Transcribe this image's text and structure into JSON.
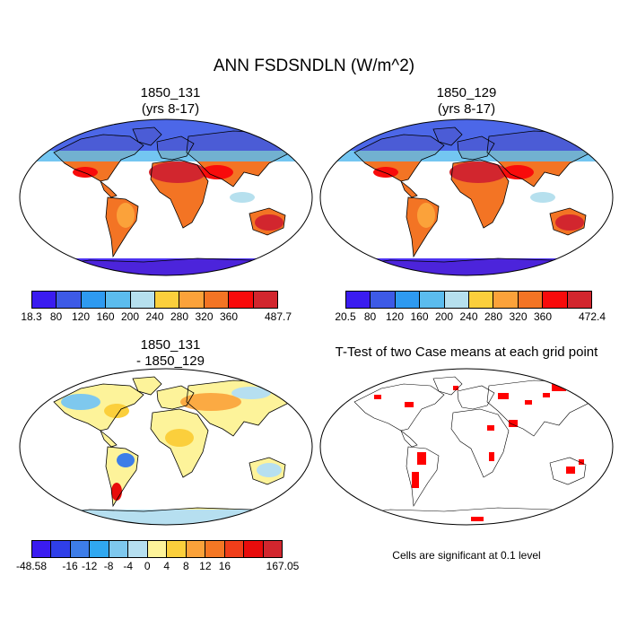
{
  "title": "ANN FSDSNDLN (W/m^2)",
  "panels": [
    {
      "title": [
        "1850_131",
        "(yrs 8-17)"
      ],
      "colorbar": {
        "colors": [
          "#3a1cf0",
          "#3d5ae6",
          "#2e9af0",
          "#5bbcee",
          "#b6e0ee",
          "#fbcf3c",
          "#fba23a",
          "#f37424",
          "#f80b0b",
          "#d2262e"
        ],
        "labels": [
          "18.3",
          "80",
          "120",
          "160",
          "200",
          "240",
          "280",
          "320",
          "360",
          "487.7"
        ]
      }
    },
    {
      "title": [
        "1850_129",
        "(yrs 8-17)"
      ],
      "colorbar": {
        "colors": [
          "#3a1cf0",
          "#3d5ae6",
          "#2e9af0",
          "#5bbcee",
          "#b6e0ee",
          "#fbcf3c",
          "#fba23a",
          "#f37424",
          "#f80b0b",
          "#d2262e"
        ],
        "labels": [
          "20.5",
          "80",
          "120",
          "160",
          "200",
          "240",
          "280",
          "320",
          "360",
          "472.4"
        ]
      }
    },
    {
      "title": [
        "1850_131",
        "- 1850_129"
      ],
      "colorbar": {
        "colors": [
          "#3a1cf0",
          "#2f3fe8",
          "#3d7de8",
          "#30a8f0",
          "#7ec8ee",
          "#b6dff0",
          "#fdf39a",
          "#fbcf3c",
          "#fba23a",
          "#f57724",
          "#f03e1a",
          "#e80c0c",
          "#d2262e"
        ],
        "labels": [
          "-48.58",
          "",
          "-16",
          "-12",
          "-8",
          "-4",
          "0",
          "4",
          "8",
          "12",
          "16",
          "",
          "167.05"
        ]
      }
    },
    {
      "title": [
        "T-Test of two Case means at each grid point"
      ],
      "footnote": "Cells are significant at 0.1 level"
    }
  ]
}
